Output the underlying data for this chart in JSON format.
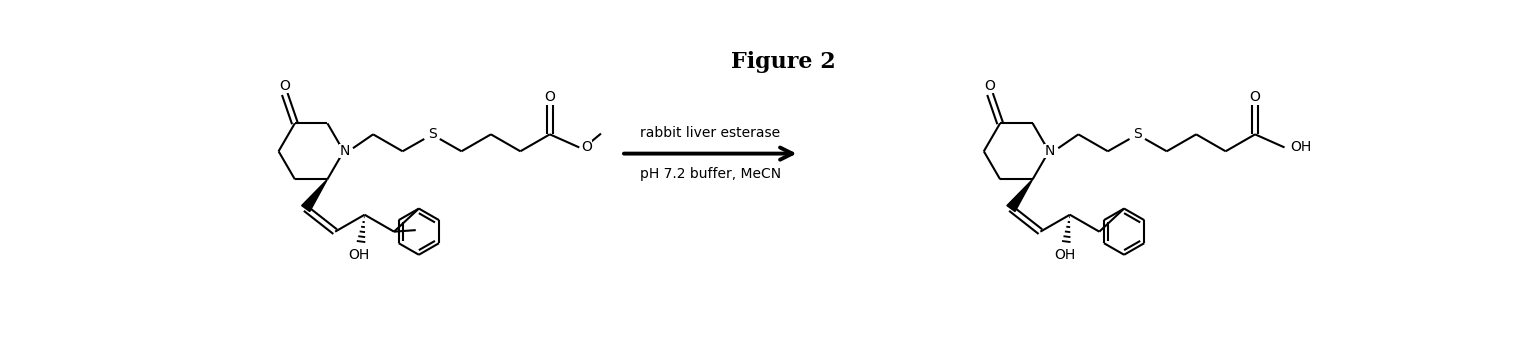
{
  "title": "Figure 2",
  "title_fontsize": 16,
  "title_fontweight": "bold",
  "background_color": "#ffffff",
  "arrow_text_line1": "rabbit liver esterase",
  "arrow_text_line2": "pH 7.2 buffer, MeCN",
  "arrow_text_fontsize": 10,
  "figsize": [
    15.28,
    3.56
  ],
  "dpi": 100
}
